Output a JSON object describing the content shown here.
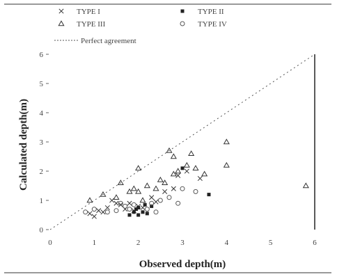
{
  "chart_data": {
    "type": "scatter",
    "xlabel": "Observed depth(m)",
    "ylabel": "Calculated depth(m)",
    "xlim": [
      0,
      6
    ],
    "ylim": [
      0,
      6
    ],
    "x_ticks": [
      "0",
      "1",
      "2",
      "3",
      "4",
      "5",
      "6"
    ],
    "y_ticks": [
      "0",
      "1",
      "2",
      "3",
      "4",
      "5",
      "6"
    ],
    "grid": false,
    "legend_position": "top",
    "series": [
      {
        "name": "TYPE I",
        "marker": "x",
        "points": [
          [
            0.9,
            0.55
          ],
          [
            1.1,
            0.65
          ],
          [
            1.2,
            0.6
          ],
          [
            1.3,
            0.75
          ],
          [
            1.5,
            0.9
          ],
          [
            1.6,
            0.85
          ],
          [
            1.7,
            0.7
          ],
          [
            1.9,
            0.65
          ],
          [
            2.0,
            0.8
          ],
          [
            2.1,
            0.75
          ],
          [
            2.3,
            1.1
          ],
          [
            2.4,
            0.95
          ],
          [
            2.6,
            1.3
          ],
          [
            2.8,
            1.4
          ],
          [
            2.9,
            1.85
          ],
          [
            3.1,
            2.0
          ],
          [
            3.4,
            1.75
          ],
          [
            1.0,
            0.45
          ],
          [
            1.4,
            1.0
          ],
          [
            1.8,
            0.9
          ]
        ]
      },
      {
        "name": "TYPE II",
        "marker": "square",
        "points": [
          [
            1.8,
            0.5
          ],
          [
            1.9,
            0.6
          ],
          [
            2.0,
            0.75
          ],
          [
            2.1,
            0.6
          ],
          [
            2.2,
            0.55
          ],
          [
            2.3,
            0.8
          ],
          [
            2.0,
            0.5
          ],
          [
            3.0,
            2.1
          ],
          [
            3.6,
            1.2
          ],
          [
            1.95,
            0.7
          ],
          [
            2.15,
            0.85
          ]
        ]
      },
      {
        "name": "TYPE III",
        "marker": "triangle",
        "points": [
          [
            0.9,
            1.0
          ],
          [
            1.2,
            1.2
          ],
          [
            1.5,
            1.1
          ],
          [
            1.8,
            1.3
          ],
          [
            1.9,
            1.4
          ],
          [
            2.0,
            1.3
          ],
          [
            2.1,
            1.0
          ],
          [
            2.2,
            1.5
          ],
          [
            2.4,
            1.4
          ],
          [
            2.6,
            1.6
          ],
          [
            2.8,
            1.9
          ],
          [
            2.9,
            2.0
          ],
          [
            3.1,
            2.2
          ],
          [
            3.3,
            2.1
          ],
          [
            3.5,
            1.9
          ],
          [
            2.0,
            2.1
          ],
          [
            2.7,
            2.7
          ],
          [
            2.8,
            2.5
          ],
          [
            3.2,
            2.6
          ],
          [
            4.0,
            2.2
          ],
          [
            4.0,
            3.0
          ],
          [
            5.8,
            1.5
          ],
          [
            1.6,
            1.6
          ],
          [
            2.5,
            1.7
          ]
        ]
      },
      {
        "name": "TYPE IV",
        "marker": "circle",
        "points": [
          [
            0.8,
            0.6
          ],
          [
            1.0,
            0.7
          ],
          [
            1.3,
            0.6
          ],
          [
            1.5,
            0.65
          ],
          [
            1.7,
            0.8
          ],
          [
            1.8,
            0.7
          ],
          [
            2.2,
            0.7
          ],
          [
            2.4,
            0.6
          ],
          [
            2.5,
            1.0
          ],
          [
            2.7,
            1.1
          ],
          [
            2.9,
            0.9
          ],
          [
            3.0,
            1.4
          ],
          [
            3.3,
            1.3
          ],
          [
            1.6,
            0.9
          ],
          [
            1.9,
            0.85
          ],
          [
            2.3,
            0.9
          ]
        ]
      }
    ],
    "reference_line": {
      "name": "Perfect agreement",
      "from": [
        0,
        0
      ],
      "to": [
        6,
        6
      ],
      "style": "dotted"
    }
  }
}
